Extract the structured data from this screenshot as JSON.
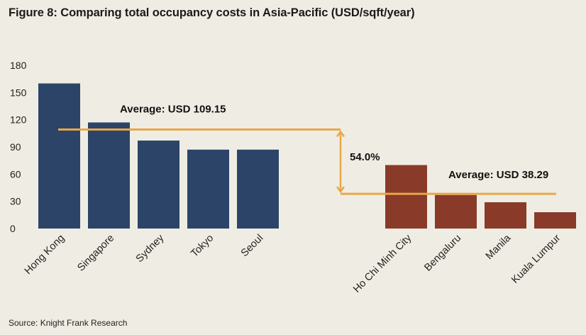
{
  "title": "Figure 8: Comparing total occupancy costs in Asia-Pacific (USD/sqft/year)",
  "source": "Source: Knight Frank Research",
  "chart_data": {
    "type": "bar",
    "title": "Figure 8: Comparing total occupancy costs in Asia-Pacific (USD/sqft/year)",
    "xlabel": "",
    "ylabel": "",
    "ylim": [
      0,
      180
    ],
    "yticks": [
      0,
      30,
      60,
      90,
      120,
      150,
      180
    ],
    "grid": false,
    "groups": [
      {
        "name": "group-1",
        "color": "#2c4468",
        "categories": [
          "Hong Kong",
          "Singapore",
          "Sydney",
          "Tokyo",
          "Seoul"
        ],
        "values": [
          160,
          117,
          97,
          87,
          87
        ],
        "average": 109.15,
        "average_label": "Average: USD 109.15"
      },
      {
        "name": "group-2",
        "color": "#8a3a28",
        "categories": [
          "Ho Chi Minh City",
          "Bengaluru",
          "Manila",
          "Kuala Lumpur"
        ],
        "values": [
          70,
          37,
          29,
          18
        ],
        "average": 38.29,
        "average_label": "Average: USD 38.29"
      }
    ],
    "difference_label": "54.0%",
    "annotation_color": "#e8a74a"
  }
}
